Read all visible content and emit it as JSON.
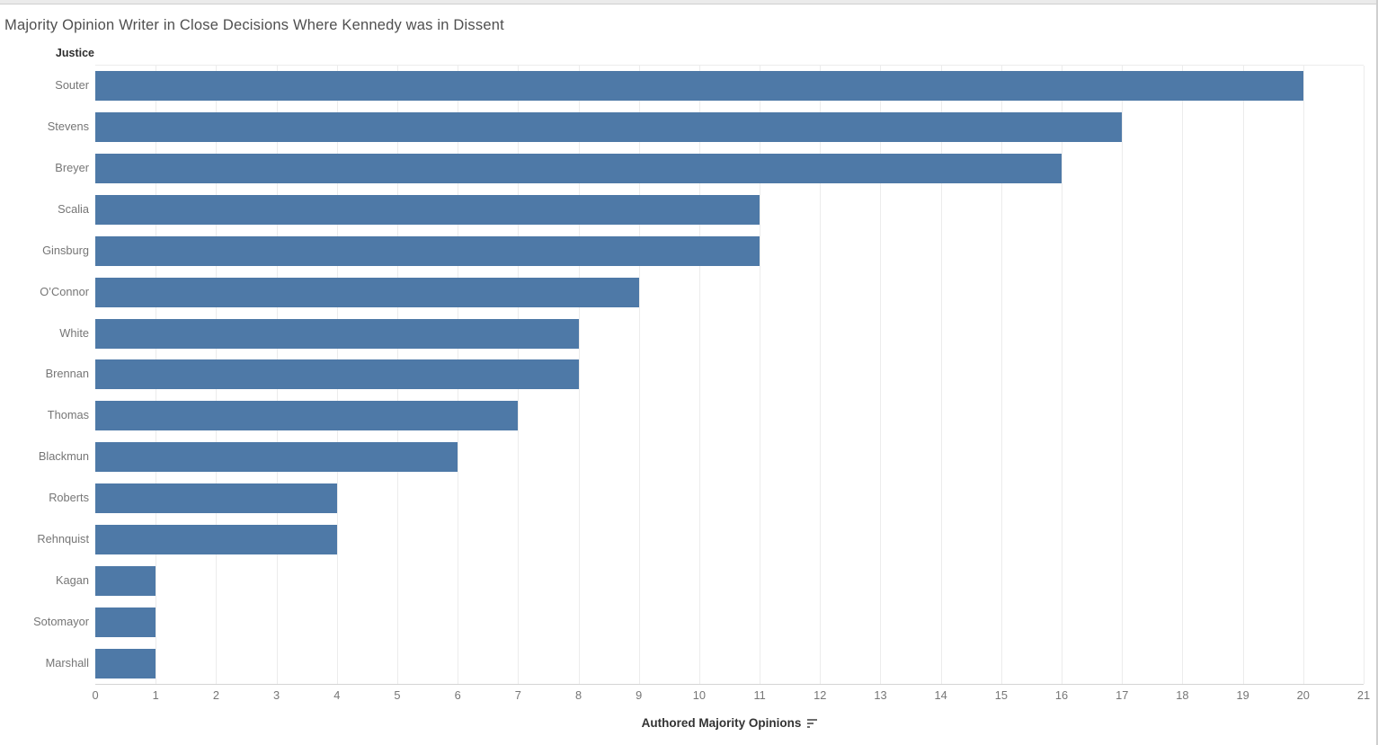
{
  "header": {
    "title": "Majority Opinion Writer in Close Decisions Where Kennedy was in Dissent"
  },
  "chart_data": {
    "type": "bar",
    "orientation": "horizontal",
    "title": "Majority Opinion Writer in Close Decisions Where Kennedy was in Dissent",
    "row_field_label": "Justice",
    "xlabel": "Authored Majority Opinions",
    "categories": [
      "Souter",
      "Stevens",
      "Breyer",
      "Scalia",
      "Ginsburg",
      "O’Connor",
      "White",
      "Brennan",
      "Thomas",
      "Blackmun",
      "Roberts",
      "Rehnquist",
      "Kagan",
      "Sotomayor",
      "Marshall"
    ],
    "values": [
      20,
      17,
      16,
      11,
      11,
      9,
      8,
      8,
      7,
      6,
      4,
      4,
      1,
      1,
      1
    ],
    "xlim": [
      0,
      21
    ],
    "x_ticks": [
      0,
      1,
      2,
      3,
      4,
      5,
      6,
      7,
      8,
      9,
      10,
      11,
      12,
      13,
      14,
      15,
      16,
      17,
      18,
      19,
      20,
      21
    ],
    "grid": true,
    "legend": "none",
    "sort": "descending"
  },
  "icons": {
    "sort_descending": "sort-descending-icon"
  },
  "colors": {
    "bar": "#4e79a7",
    "grid": "#ececec",
    "axis_line": "#d4d4d4",
    "tick_label": "#767676",
    "title": "#4f4f4f",
    "field_label": "#2e2e2e",
    "axis_title": "#333333",
    "sort_icon": "#6e6e6e",
    "chrome_bg": "#ebebeb",
    "chrome_border": "#cfcfcf"
  }
}
